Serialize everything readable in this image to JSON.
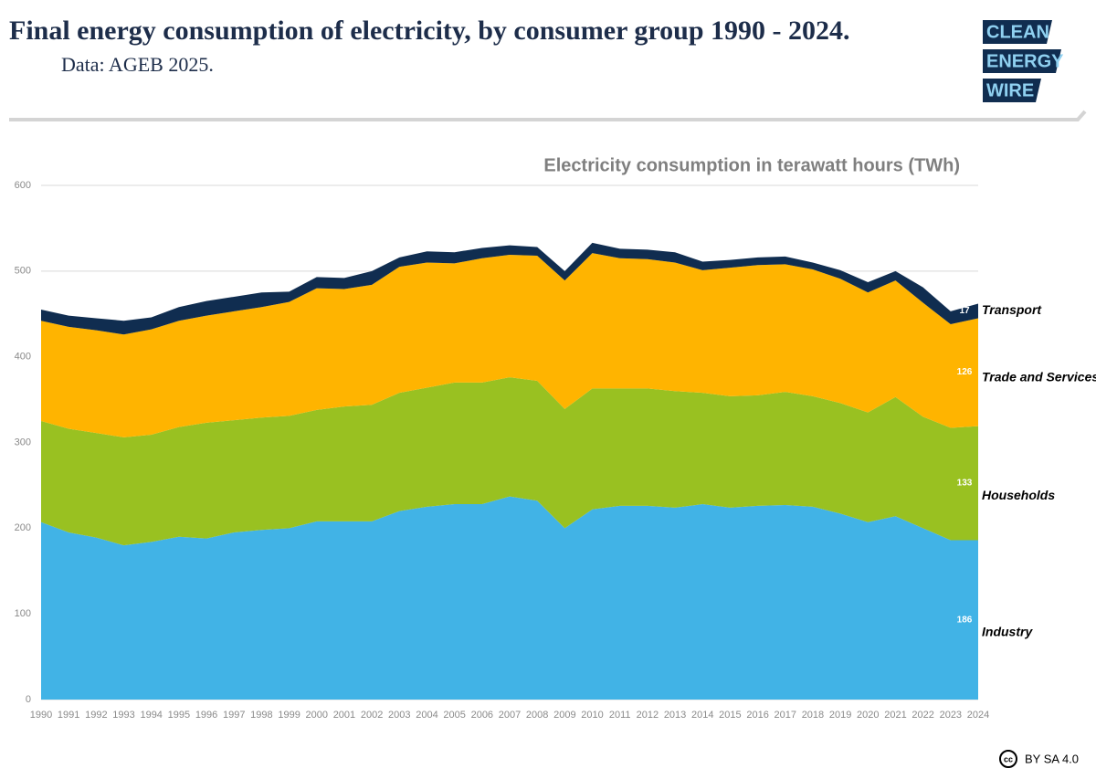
{
  "header": {
    "title": "Final energy consumption of electricity, by consumer group 1990 - 2024.",
    "subtitle": "Data: AGEB 2025.",
    "logo": [
      "CLEAN",
      "ENERGY",
      "WIRE"
    ],
    "license": "BY SA 4.0"
  },
  "chart_data": {
    "type": "area",
    "stacked": true,
    "title": "Electricity consumption in terawatt hours (TWh)",
    "x": [
      1990,
      1991,
      1992,
      1993,
      1994,
      1995,
      1996,
      1997,
      1998,
      1999,
      2000,
      2001,
      2002,
      2003,
      2004,
      2005,
      2006,
      2007,
      2008,
      2009,
      2010,
      2011,
      2012,
      2013,
      2014,
      2015,
      2016,
      2017,
      2018,
      2019,
      2020,
      2021,
      2022,
      2023,
      2024
    ],
    "xlim": [
      1990,
      2024
    ],
    "series": [
      {
        "name": "Industry",
        "color": "#41b3e6",
        "values": [
          207,
          195,
          189,
          180,
          184,
          190,
          188,
          195,
          198,
          200,
          208,
          208,
          208,
          220,
          225,
          228,
          228,
          237,
          232,
          200,
          222,
          226,
          226,
          224,
          228,
          224,
          226,
          227,
          225,
          217,
          207,
          214,
          200,
          186,
          186
        ]
      },
      {
        "name": "Households",
        "color": "#99c121",
        "values": [
          118,
          121,
          122,
          126,
          125,
          128,
          135,
          131,
          131,
          131,
          130,
          134,
          136,
          138,
          139,
          142,
          142,
          139,
          140,
          139,
          141,
          137,
          137,
          136,
          130,
          130,
          129,
          132,
          129,
          129,
          128,
          139,
          130,
          131,
          133
        ]
      },
      {
        "name": "Trade and Services",
        "color": "#ffb400",
        "values": [
          117,
          119,
          120,
          120,
          123,
          124,
          125,
          127,
          129,
          133,
          142,
          137,
          140,
          147,
          146,
          139,
          145,
          143,
          146,
          150,
          158,
          152,
          151,
          150,
          143,
          150,
          152,
          149,
          148,
          145,
          140,
          136,
          133,
          121,
          126
        ]
      },
      {
        "name": "Transport",
        "color": "#102d50",
        "values": [
          13,
          13,
          14,
          16,
          14,
          16,
          17,
          17,
          17,
          12,
          13,
          13,
          16,
          11,
          13,
          13,
          12,
          11,
          10,
          11,
          12,
          11,
          11,
          12,
          10,
          9,
          9,
          9,
          8,
          10,
          12,
          11,
          18,
          15,
          17
        ]
      }
    ],
    "ylim": [
      0,
      600
    ],
    "yticks": [
      0,
      100,
      200,
      300,
      400,
      500,
      600
    ],
    "grid": true
  }
}
